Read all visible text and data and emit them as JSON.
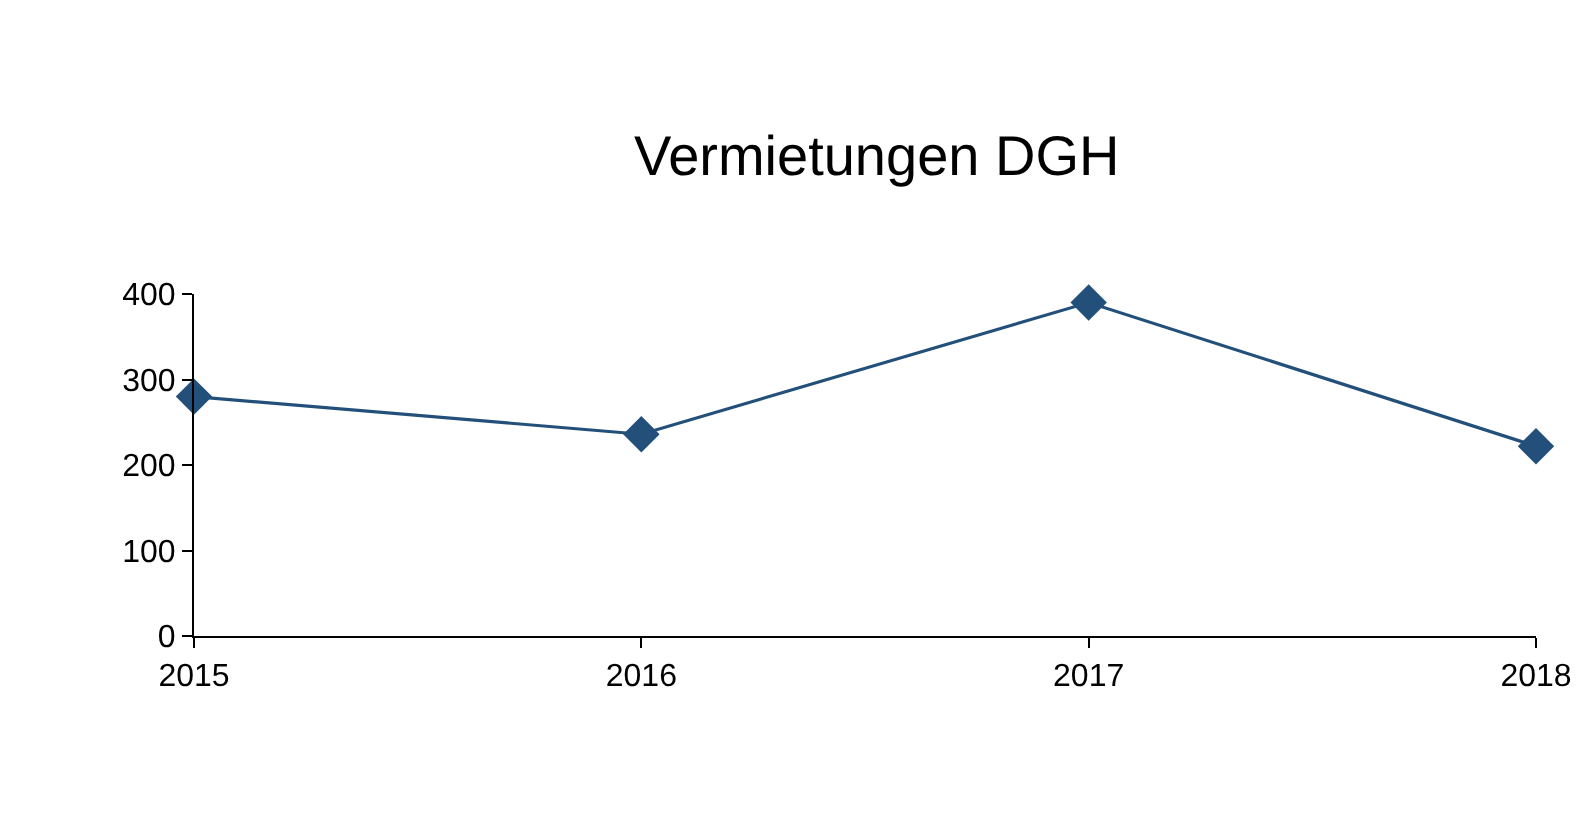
{
  "chart_data": {
    "type": "line",
    "title": "Vermietungen DGH",
    "x": [
      2015,
      2016,
      2017,
      2018
    ],
    "series": [
      {
        "color": "#22507a",
        "values": [
          280,
          236,
          390,
          222
        ]
      }
    ],
    "xlim": [
      2015,
      2018
    ],
    "xticks": [
      2015,
      2016,
      2017,
      2018
    ],
    "ylim": [
      0,
      400
    ],
    "yticks": [
      0,
      100,
      200,
      300,
      400
    ],
    "marker": "diamond",
    "line_style": "solid"
  }
}
